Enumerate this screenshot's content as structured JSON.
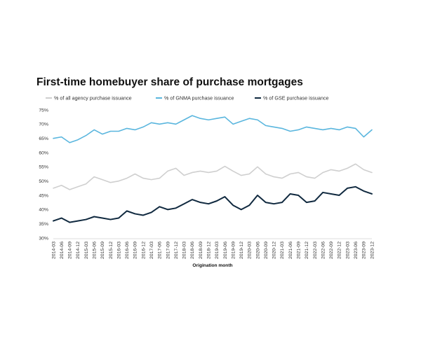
{
  "chart_data": {
    "type": "line",
    "title": "First-time homebuyer share of purchase mortgages",
    "xlabel": "Origination month",
    "ylabel": "",
    "ylim": [
      30,
      75
    ],
    "ytick_labels": [
      "30%",
      "35%",
      "40%",
      "45%",
      "50%",
      "55%",
      "60%",
      "65%",
      "70%",
      "75%"
    ],
    "x_tick_labels": [
      "2014-03",
      "2014-06",
      "2014-09",
      "2014-12",
      "2015-03",
      "2015-06",
      "2015-09",
      "2015-12",
      "2016-03",
      "2016-06",
      "2016-09",
      "2016-12",
      "2017-03",
      "2017-06",
      "2017-09",
      "2017-12",
      "2018-03",
      "2018-06",
      "2018-09",
      "2018-12",
      "2019-03",
      "2019-06",
      "2019-09",
      "2019-12",
      "2020-03",
      "2020-06",
      "2020-09",
      "2020-12",
      "2021-03",
      "2021-06",
      "2021-09",
      "2021-12",
      "2022-03",
      "2022-06",
      "2022-09",
      "2022-12",
      "2023-03",
      "2023-06",
      "2023-09",
      "2023-12"
    ],
    "grid": false,
    "legend_position": "top",
    "series": [
      {
        "name": "% of all agency purchase issuance",
        "color": "#cfcfcf",
        "values": [
          47.5,
          48.5,
          47.0,
          48.0,
          49.0,
          51.5,
          50.5,
          49.5,
          50.0,
          51.0,
          52.5,
          51.0,
          50.5,
          51.0,
          53.5,
          54.5,
          52.0,
          53.0,
          53.5,
          53.0,
          53.5,
          55.2,
          53.5,
          52.0,
          52.5,
          55.0,
          52.5,
          51.5,
          51.0,
          52.5,
          53.0,
          51.5,
          51.0,
          53.0,
          54.0,
          53.5,
          54.5,
          56.0,
          54.0,
          53.0
        ]
      },
      {
        "name": "% of GNMA purchase issuance",
        "color": "#5ab6de",
        "values": [
          65.0,
          65.5,
          63.5,
          64.5,
          66.0,
          68.0,
          66.5,
          67.5,
          67.5,
          68.5,
          68.0,
          69.0,
          70.5,
          70.0,
          70.5,
          70.0,
          71.5,
          73.0,
          72.0,
          71.5,
          72.0,
          72.5,
          70.0,
          71.0,
          72.0,
          71.5,
          69.5,
          69.0,
          68.5,
          67.5,
          68.0,
          69.0,
          68.5,
          68.0,
          68.5,
          68.0,
          69.0,
          68.5,
          65.5,
          68.0
        ]
      },
      {
        "name": "% of GSE purchase issuance",
        "color": "#10293f",
        "values": [
          36.0,
          37.0,
          35.5,
          36.0,
          36.5,
          37.5,
          37.0,
          36.5,
          37.0,
          39.5,
          38.5,
          38.0,
          39.0,
          41.0,
          40.0,
          40.5,
          42.0,
          43.5,
          42.5,
          42.0,
          43.0,
          44.5,
          41.5,
          40.0,
          41.5,
          45.0,
          42.5,
          42.0,
          42.5,
          45.5,
          45.0,
          42.5,
          43.0,
          46.0,
          45.5,
          45.0,
          47.5,
          48.0,
          46.5,
          45.5
        ]
      }
    ]
  }
}
